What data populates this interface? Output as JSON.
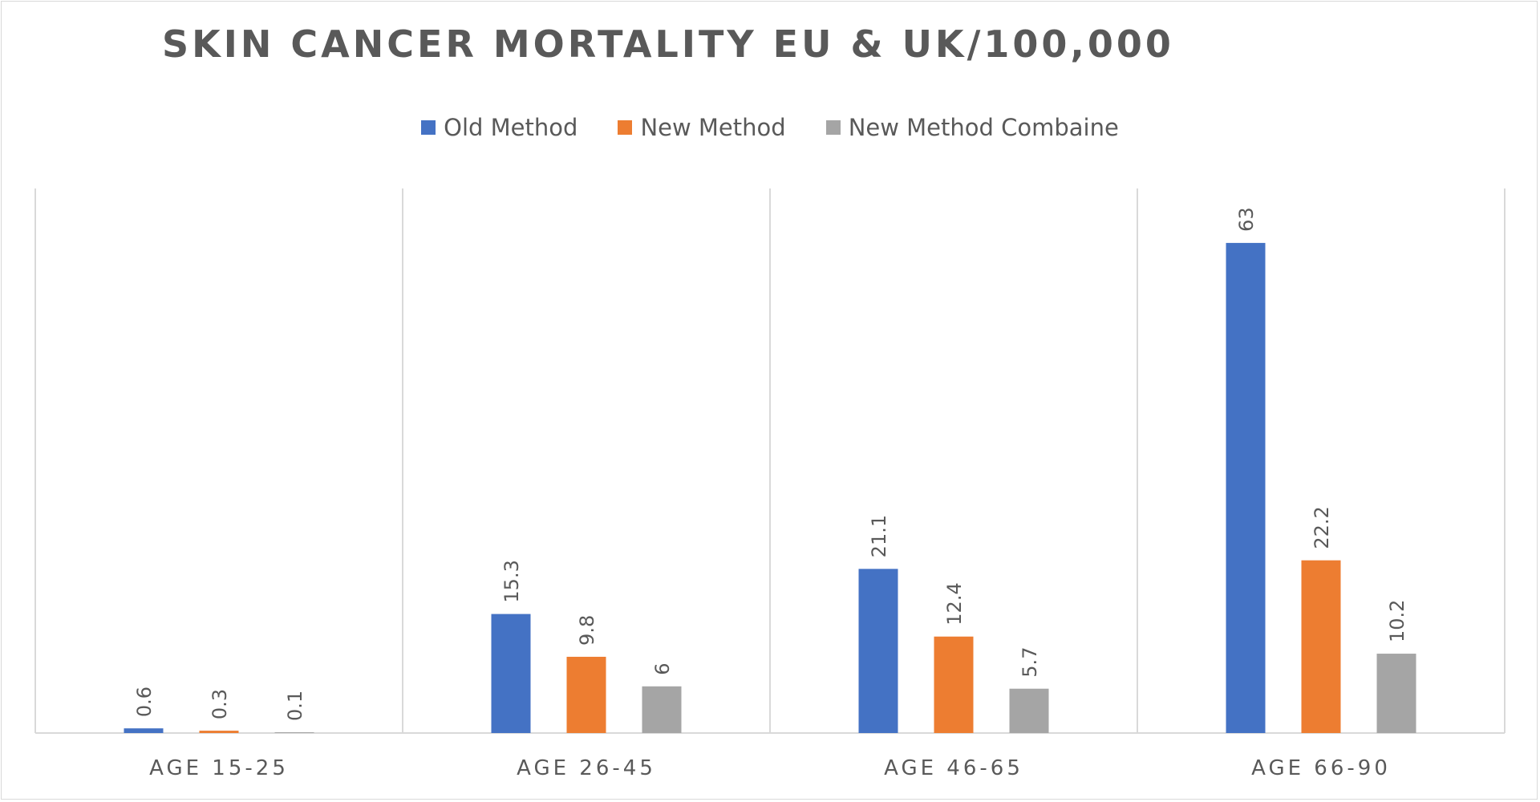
{
  "chart_data": {
    "type": "bar",
    "title": "SKIN CANCER MORTALITY EU & UK/100,000",
    "categories": [
      "AGE 15-25",
      "AGE 26-45",
      "AGE 46-65",
      "AGE 66-90"
    ],
    "series": [
      {
        "name": "Old Method",
        "color": "#4472c4",
        "values": [
          0.6,
          15.3,
          21.1,
          63
        ]
      },
      {
        "name": "New Method",
        "color": "#ed7d31",
        "values": [
          0.3,
          9.8,
          12.4,
          22.2
        ]
      },
      {
        "name": "New Method Combaine",
        "color": "#a5a5a5",
        "values": [
          0.1,
          6,
          5.7,
          10.2
        ]
      }
    ],
    "ylim": [
      0,
      70
    ],
    "grid": "vertical separators between categories",
    "legend_position": "top",
    "data_labels": "rotated vertical above bars"
  }
}
